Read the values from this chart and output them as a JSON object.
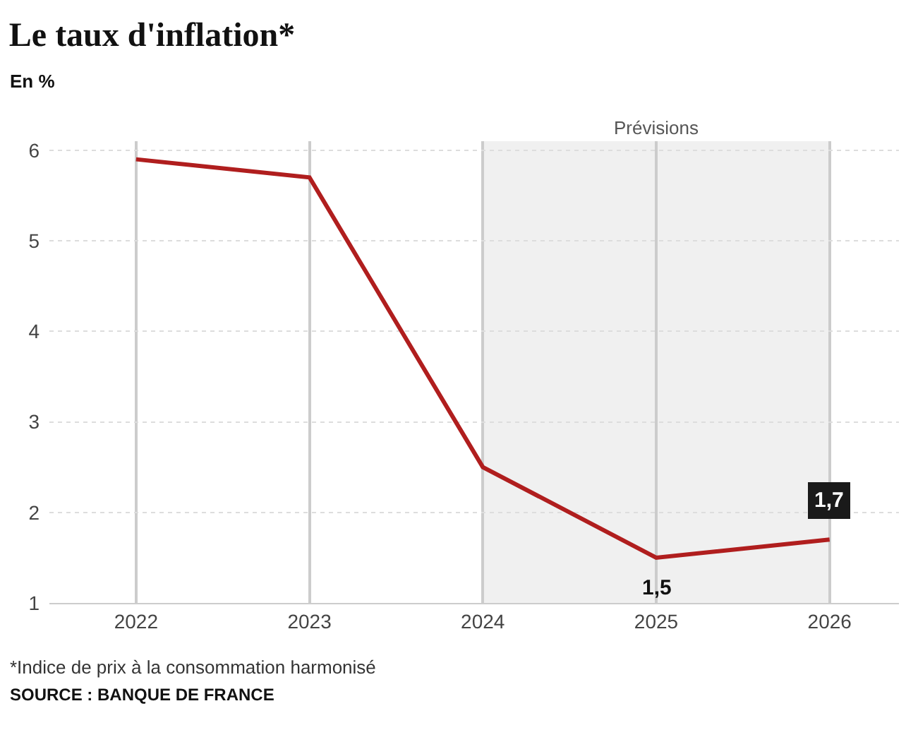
{
  "chart_data": {
    "type": "line",
    "title": "Le taux d'inflation*",
    "ylabel": "En %",
    "x": [
      2022,
      2023,
      2024,
      2025,
      2026
    ],
    "series": [
      {
        "color": "#b01e1e",
        "values": [
          5.9,
          5.7,
          2.5,
          1.5,
          1.7
        ],
        "value_labels": [
          null,
          null,
          null,
          "1,5",
          "1,7"
        ]
      }
    ],
    "xlim": [
      2021.5,
      2026.4
    ],
    "xticks": [
      2022,
      2023,
      2024,
      2025,
      2026
    ],
    "ylim": [
      1,
      6.1
    ],
    "yticks": [
      1,
      2,
      3,
      4,
      5,
      6
    ],
    "bands": [
      {
        "axis": "x",
        "from": 2024,
        "to": 2026,
        "label": "Prévisions",
        "color": "#f0f0f0"
      }
    ],
    "grid": true,
    "legend": false,
    "marker": "none",
    "line_style": "solid",
    "annotations": [
      "*Indice de prix à la consommation harmonisé",
      "SOURCE : BANQUE DE FRANCE"
    ]
  }
}
